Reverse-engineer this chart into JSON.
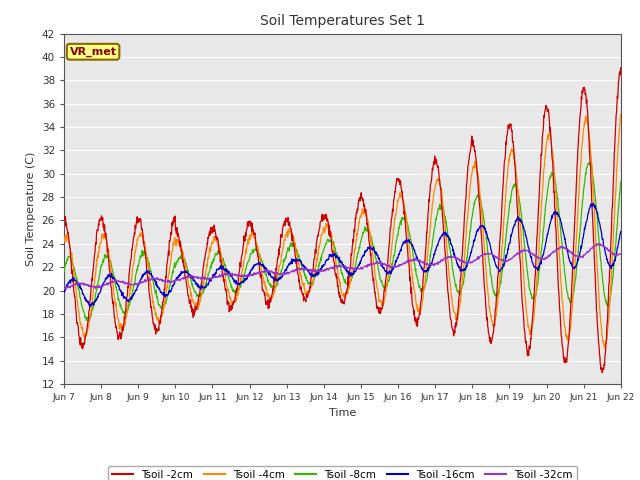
{
  "title": "Soil Temperatures Set 1",
  "xlabel": "Time",
  "ylabel": "Soil Temperature (C)",
  "ylim": [
    12,
    42
  ],
  "yticks": [
    12,
    14,
    16,
    18,
    20,
    22,
    24,
    26,
    28,
    30,
    32,
    34,
    36,
    38,
    40,
    42
  ],
  "xtick_labels": [
    "Jun 7",
    "Jun 8",
    "Jun 9",
    "Jun 10",
    "Jun 11",
    "Jun 12",
    "Jun 13",
    "Jun 14",
    "Jun 15",
    "Jun 16",
    "Jun 17",
    "Jun 18",
    "Jun 19",
    "Jun 20",
    "Jun 21",
    "Jun 22"
  ],
  "annotation_text": "VR_met",
  "colors": {
    "tsoil_2cm": "#cc0000",
    "tsoil_4cm": "#ff8800",
    "tsoil_8cm": "#33bb00",
    "tsoil_16cm": "#0000cc",
    "tsoil_32cm": "#9933cc"
  },
  "legend_labels": [
    "Tsoil -2cm",
    "Tsoil -4cm",
    "Tsoil -8cm",
    "Tsoil -16cm",
    "Tsoil -32cm"
  ],
  "fig_bg_color": "#ffffff",
  "plot_bg_color": "#e8e8e8",
  "n_days": 15,
  "pts_per_day": 96
}
